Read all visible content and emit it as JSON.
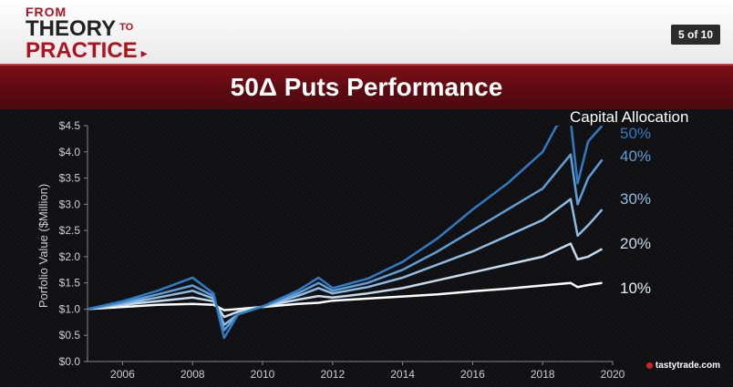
{
  "header": {
    "brand_from": "FROM",
    "brand_theory": "THEORY",
    "brand_to": "TO",
    "brand_practice": "PRACTICE",
    "page_indicator": "5 of 10"
  },
  "slide": {
    "title": "50Δ Puts Performance"
  },
  "footer": {
    "logo_text": "tastytrade.com"
  },
  "colors": {
    "brand_red": "#b1101e",
    "band_red": "#6b0d15",
    "s10": "#ffffff",
    "s20": "#c6dbee",
    "s30": "#8ebde4",
    "s40": "#5e9fd6",
    "s50": "#2f7cc4"
  },
  "chart_data": {
    "type": "line",
    "ylabel": "Porfolio Value ($Million)",
    "xlim": [
      2005,
      2020
    ],
    "ylim": [
      0,
      4.5
    ],
    "xticks": [
      2006,
      2008,
      2010,
      2012,
      2014,
      2016,
      2018,
      2020
    ],
    "yticks": [
      0.0,
      0.5,
      1.0,
      1.5,
      2.0,
      2.5,
      3.0,
      3.5,
      4.0,
      4.5
    ],
    "ytick_labels": [
      "$0.0",
      "$0.5",
      "$1.0",
      "$1.5",
      "$2.0",
      "$2.5",
      "$3.0",
      "$3.5",
      "$4.0",
      "$4.5"
    ],
    "legend_title": "Capital Allocation",
    "series": [
      {
        "name": "10%",
        "color": "#ffffff",
        "x": [
          2005.0,
          2006.0,
          2007.0,
          2008.0,
          2008.6,
          2008.9,
          2009.3,
          2010.0,
          2011.0,
          2011.6,
          2012.0,
          2013.0,
          2014.0,
          2015.0,
          2016.0,
          2017.0,
          2018.0,
          2018.8,
          2019.0,
          2019.3,
          2019.7
        ],
        "values": [
          1.0,
          1.04,
          1.08,
          1.1,
          1.08,
          0.98,
          1.0,
          1.04,
          1.1,
          1.12,
          1.16,
          1.2,
          1.24,
          1.28,
          1.34,
          1.39,
          1.45,
          1.5,
          1.42,
          1.46,
          1.5
        ]
      },
      {
        "name": "20%",
        "color": "#c6dbee",
        "x": [
          2005.0,
          2006.0,
          2007.0,
          2008.0,
          2008.6,
          2008.9,
          2009.3,
          2010.0,
          2011.0,
          2011.6,
          2012.0,
          2013.0,
          2014.0,
          2015.0,
          2016.0,
          2017.0,
          2018.0,
          2018.8,
          2019.0,
          2019.3,
          2019.7
        ],
        "values": [
          1.0,
          1.08,
          1.15,
          1.22,
          1.15,
          0.85,
          0.95,
          1.05,
          1.18,
          1.25,
          1.22,
          1.3,
          1.4,
          1.55,
          1.7,
          1.85,
          2.0,
          2.25,
          1.95,
          2.0,
          2.15
        ]
      },
      {
        "name": "30%",
        "color": "#8ebde4",
        "x": [
          2005.0,
          2006.0,
          2007.0,
          2008.0,
          2008.6,
          2008.9,
          2009.3,
          2010.0,
          2011.0,
          2011.6,
          2012.0,
          2013.0,
          2014.0,
          2015.0,
          2016.0,
          2017.0,
          2018.0,
          2018.8,
          2019.0,
          2019.3,
          2019.7
        ],
        "values": [
          1.0,
          1.1,
          1.22,
          1.35,
          1.2,
          0.7,
          0.9,
          1.05,
          1.25,
          1.4,
          1.3,
          1.42,
          1.6,
          1.85,
          2.1,
          2.4,
          2.7,
          3.1,
          2.4,
          2.6,
          2.9
        ]
      },
      {
        "name": "40%",
        "color": "#5e9fd6",
        "x": [
          2005.0,
          2006.0,
          2007.0,
          2008.0,
          2008.6,
          2008.9,
          2009.3,
          2010.0,
          2011.0,
          2011.6,
          2012.0,
          2013.0,
          2014.0,
          2015.0,
          2016.0,
          2017.0,
          2018.0,
          2018.8,
          2019.0,
          2019.3,
          2019.7
        ],
        "values": [
          1.0,
          1.12,
          1.28,
          1.45,
          1.25,
          0.6,
          0.9,
          1.05,
          1.3,
          1.5,
          1.35,
          1.5,
          1.75,
          2.1,
          2.5,
          2.9,
          3.3,
          3.95,
          3.0,
          3.5,
          3.85
        ]
      },
      {
        "name": "50%",
        "color": "#2f7cc4",
        "x": [
          2005.0,
          2006.0,
          2007.0,
          2008.0,
          2008.6,
          2008.9,
          2009.3,
          2010.0,
          2011.0,
          2011.6,
          2012.0,
          2013.0,
          2014.0,
          2015.0,
          2016.0,
          2017.0,
          2018.0,
          2018.4,
          2018.8,
          2019.0,
          2019.3,
          2019.7
        ],
        "values": [
          1.0,
          1.15,
          1.35,
          1.6,
          1.3,
          0.45,
          0.9,
          1.05,
          1.35,
          1.6,
          1.4,
          1.58,
          1.9,
          2.35,
          2.9,
          3.4,
          4.0,
          4.5,
          4.6,
          3.4,
          4.2,
          4.5
        ]
      }
    ]
  }
}
